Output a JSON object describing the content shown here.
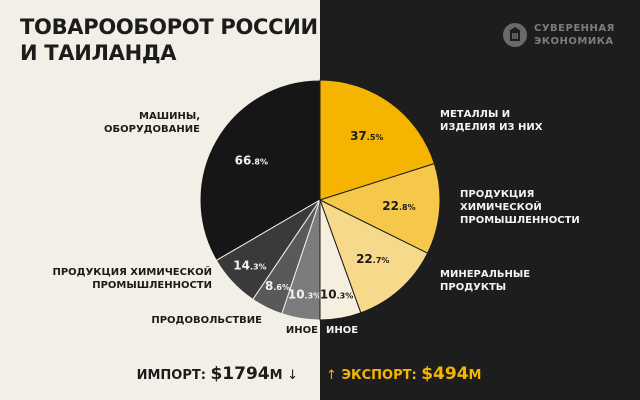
{
  "title_lines": [
    "ТОВАРООБОРОТ РОССИИ",
    "И ТАИЛАНДА"
  ],
  "brand": {
    "lines": [
      "СУВЕРЕННАЯ",
      "ЭКОНОМИКА"
    ],
    "icon": "building-logo-icon"
  },
  "colors": {
    "left_background": "#f2efe6",
    "right_background": "#1d1d1d",
    "accent": "#f5b400"
  },
  "chart_data": [
    {
      "type": "pie",
      "name": "ИМПОРТ",
      "total_label": "ИМПОРТ:",
      "total_value": "$1794",
      "total_unit": "М",
      "direction_icon": "arrow-down-icon",
      "slices": [
        {
          "label": "МАШИНЫ, ОБОРУДОВАНИЕ",
          "value": 66.8,
          "value_int": "66",
          "value_dec": ".8%",
          "color": "#161616"
        },
        {
          "label": "ПРОДУКЦИЯ ХИМИЧЕСКОЙ ПРОМЫШЛЕННОСТИ",
          "value": 14.3,
          "value_int": "14",
          "value_dec": ".3%",
          "color": "#3a3a3a"
        },
        {
          "label": "ПРОДОВОЛЬСТВИЕ",
          "value": 8.6,
          "value_int": "8",
          "value_dec": ".6%",
          "color": "#595959"
        },
        {
          "label": "ИНОЕ",
          "value": 10.3,
          "value_int": "10",
          "value_dec": ".3%",
          "color": "#7c7c7c"
        }
      ]
    },
    {
      "type": "pie",
      "name": "ЭКСПОРТ",
      "total_label": "ЭКСПОРТ:",
      "total_value": "$494",
      "total_unit": "М",
      "direction_icon": "arrow-up-icon",
      "slices": [
        {
          "label": "МЕТАЛЛЫ И ИЗДЕЛИЯ ИЗ НИХ",
          "value": 37.5,
          "value_int": "37",
          "value_dec": ".5%",
          "color": "#f5b400"
        },
        {
          "label": "ПРОДУКЦИЯ ХИМИЧЕСКОЙ ПРОМЫШЛЕННОСТИ",
          "value": 22.8,
          "value_int": "22",
          "value_dec": ".8%",
          "color": "#f6c84a"
        },
        {
          "label": "МИНЕРАЛЬНЫЕ ПРОДУКТЫ",
          "value": 22.7,
          "value_int": "22",
          "value_dec": ".7%",
          "color": "#f7d98c"
        },
        {
          "label": "ИНОЕ",
          "value": 10.3,
          "value_int": "10",
          "value_dec": ".3%",
          "color": "#f6efdd"
        }
      ]
    }
  ]
}
